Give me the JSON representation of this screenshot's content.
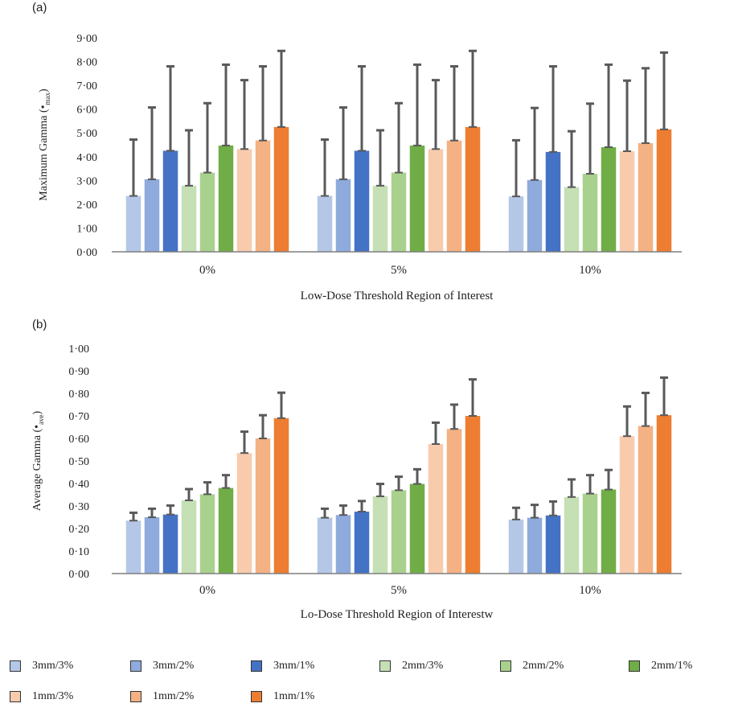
{
  "categories": [
    "0%",
    "5%",
    "10%"
  ],
  "series_names": [
    "3mm/3%",
    "3mm/2%",
    "3mm/1%",
    "2mm/3%",
    "2mm/2%",
    "2mm/1%",
    "1mm/3%",
    "1mm/2%",
    "1mm/1%"
  ],
  "series_colors": [
    "#b4c7e7",
    "#8faadc",
    "#4472c4",
    "#c5e0b4",
    "#a9d18e",
    "#70ad47",
    "#f8cbad",
    "#f4b183",
    "#ed7d31"
  ],
  "chart_data": [
    {
      "type": "bar",
      "panel_label": "(a)",
      "xlabel": "Low-Dose Threshold Region of Interest",
      "ylabel_main": "Maximum Gamma (",
      "ylabel_glyph": "•",
      "ylabel_sub": "max",
      "ylabel_close": ")",
      "ylim": [
        0,
        9
      ],
      "yticks": [
        0,
        1,
        2,
        3,
        4,
        5,
        6,
        7,
        8,
        9
      ],
      "ytick_labels": [
        "0·00",
        "1·00",
        "2·00",
        "3·00",
        "4·00",
        "5·00",
        "6·00",
        "7·00",
        "8·00",
        "9·00"
      ],
      "categories": [
        "0%",
        "5%",
        "10%"
      ],
      "series": [
        {
          "name": "3mm/3%",
          "values": [
            2.35,
            2.35,
            2.33
          ],
          "errors": [
            2.37,
            2.37,
            2.36
          ]
        },
        {
          "name": "3mm/2%",
          "values": [
            3.05,
            3.05,
            3.02
          ],
          "errors": [
            3.02,
            3.02,
            3.03
          ]
        },
        {
          "name": "3mm/1%",
          "values": [
            4.25,
            4.25,
            4.2
          ],
          "errors": [
            3.55,
            3.55,
            3.6
          ]
        },
        {
          "name": "2mm/3%",
          "values": [
            2.78,
            2.78,
            2.72
          ],
          "errors": [
            2.33,
            2.33,
            2.35
          ]
        },
        {
          "name": "2mm/2%",
          "values": [
            3.33,
            3.33,
            3.28
          ],
          "errors": [
            2.92,
            2.92,
            2.95
          ]
        },
        {
          "name": "2mm/1%",
          "values": [
            4.47,
            4.47,
            4.4
          ],
          "errors": [
            3.4,
            3.4,
            3.47
          ]
        },
        {
          "name": "1mm/3%",
          "values": [
            4.32,
            4.32,
            4.23
          ],
          "errors": [
            2.9,
            2.9,
            2.97
          ]
        },
        {
          "name": "1mm/2%",
          "values": [
            4.68,
            4.68,
            4.57
          ],
          "errors": [
            3.12,
            3.12,
            3.15
          ]
        },
        {
          "name": "1mm/1%",
          "values": [
            5.25,
            5.25,
            5.15
          ],
          "errors": [
            3.2,
            3.2,
            3.23
          ]
        }
      ]
    },
    {
      "type": "bar",
      "panel_label": "(b)",
      "xlabel": "Lo-Dose Threshold Region of Interestw",
      "ylabel_main": "Average Gamma (",
      "ylabel_glyph": "•",
      "ylabel_sub": "ave",
      "ylabel_close": ")",
      "ylim": [
        0,
        1
      ],
      "yticks": [
        0,
        0.1,
        0.2,
        0.3,
        0.4,
        0.5,
        0.6,
        0.7,
        0.8,
        0.9,
        1.0
      ],
      "ytick_labels": [
        "0·00",
        "0·10",
        "0·20",
        "0·30",
        "0·40",
        "0·50",
        "0·60",
        "0·70",
        "0·80",
        "0·90",
        "1·00"
      ],
      "categories": [
        "0%",
        "5%",
        "10%"
      ],
      "series": [
        {
          "name": "3mm/3%",
          "values": [
            0.235,
            0.248,
            0.24
          ],
          "errors": [
            0.035,
            0.04,
            0.052
          ]
        },
        {
          "name": "3mm/2%",
          "values": [
            0.25,
            0.26,
            0.248
          ],
          "errors": [
            0.038,
            0.042,
            0.057
          ]
        },
        {
          "name": "3mm/1%",
          "values": [
            0.262,
            0.275,
            0.258
          ],
          "errors": [
            0.04,
            0.047,
            0.062
          ]
        },
        {
          "name": "2mm/3%",
          "values": [
            0.325,
            0.343,
            0.34
          ],
          "errors": [
            0.05,
            0.055,
            0.078
          ]
        },
        {
          "name": "2mm/2%",
          "values": [
            0.352,
            0.37,
            0.355
          ],
          "errors": [
            0.053,
            0.06,
            0.082
          ]
        },
        {
          "name": "2mm/1%",
          "values": [
            0.38,
            0.398,
            0.373
          ],
          "errors": [
            0.057,
            0.065,
            0.087
          ]
        },
        {
          "name": "1mm/3%",
          "values": [
            0.535,
            0.575,
            0.61
          ],
          "errors": [
            0.095,
            0.095,
            0.132
          ]
        },
        {
          "name": "1mm/2%",
          "values": [
            0.6,
            0.642,
            0.655
          ],
          "errors": [
            0.103,
            0.108,
            0.147
          ]
        },
        {
          "name": "1mm/1%",
          "values": [
            0.69,
            0.7,
            0.703
          ],
          "errors": [
            0.113,
            0.162,
            0.167
          ]
        }
      ]
    }
  ]
}
